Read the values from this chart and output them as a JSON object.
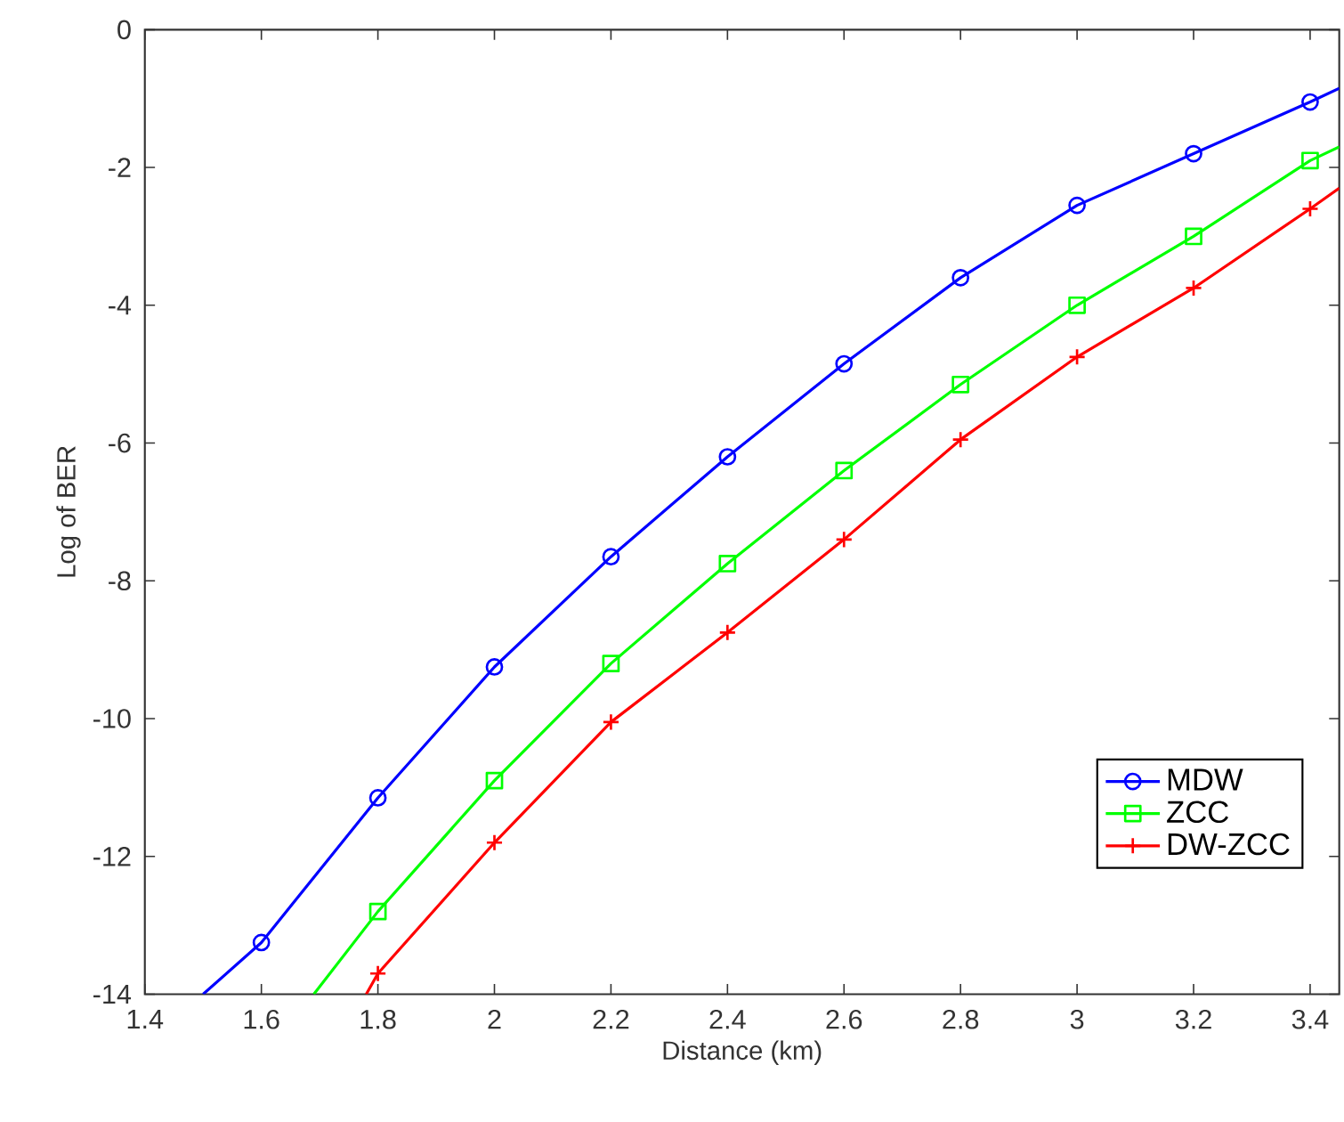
{
  "chart_data": {
    "type": "line",
    "xlabel": "Distance (km)",
    "ylabel": "Log of BER",
    "xlim": [
      1.4,
      3.45
    ],
    "ylim": [
      -14,
      0
    ],
    "xticks": [
      1.4,
      1.6,
      1.8,
      2,
      2.2,
      2.4,
      2.6,
      2.8,
      3,
      3.2,
      3.4
    ],
    "yticks": [
      -14,
      -12,
      -10,
      -8,
      -6,
      -4,
      -2,
      0
    ],
    "grid": false,
    "legend": "bottom right",
    "line_style": "solid",
    "series": [
      {
        "name": "MDW",
        "color": "#0000ff",
        "marker": "circle",
        "x": [
          1.5,
          1.6,
          1.8,
          2.0,
          2.2,
          2.4,
          2.6,
          2.8,
          3.0,
          3.2,
          3.4,
          3.45
        ],
        "values": [
          -14,
          -13.25,
          -11.15,
          -9.25,
          -7.65,
          -6.2,
          -4.85,
          -3.6,
          -2.55,
          -1.8,
          -1.05,
          -0.85
        ]
      },
      {
        "name": "ZCC",
        "color": "#00ff00",
        "marker": "square",
        "x": [
          1.69,
          1.8,
          2.0,
          2.2,
          2.4,
          2.6,
          2.8,
          3.0,
          3.2,
          3.4,
          3.45
        ],
        "values": [
          -14,
          -12.8,
          -10.9,
          -9.2,
          -7.75,
          -6.4,
          -5.15,
          -4.0,
          -3.0,
          -1.9,
          -1.7
        ]
      },
      {
        "name": "DW-ZCC",
        "color": "#ff0000",
        "marker": "cross",
        "x": [
          1.78,
          1.8,
          2.0,
          2.2,
          2.4,
          2.6,
          2.8,
          3.0,
          3.2,
          3.4,
          3.45
        ],
        "values": [
          -14,
          -13.7,
          -11.8,
          -10.05,
          -8.75,
          -7.4,
          -5.95,
          -4.75,
          -3.75,
          -2.6,
          -2.3
        ]
      }
    ]
  }
}
